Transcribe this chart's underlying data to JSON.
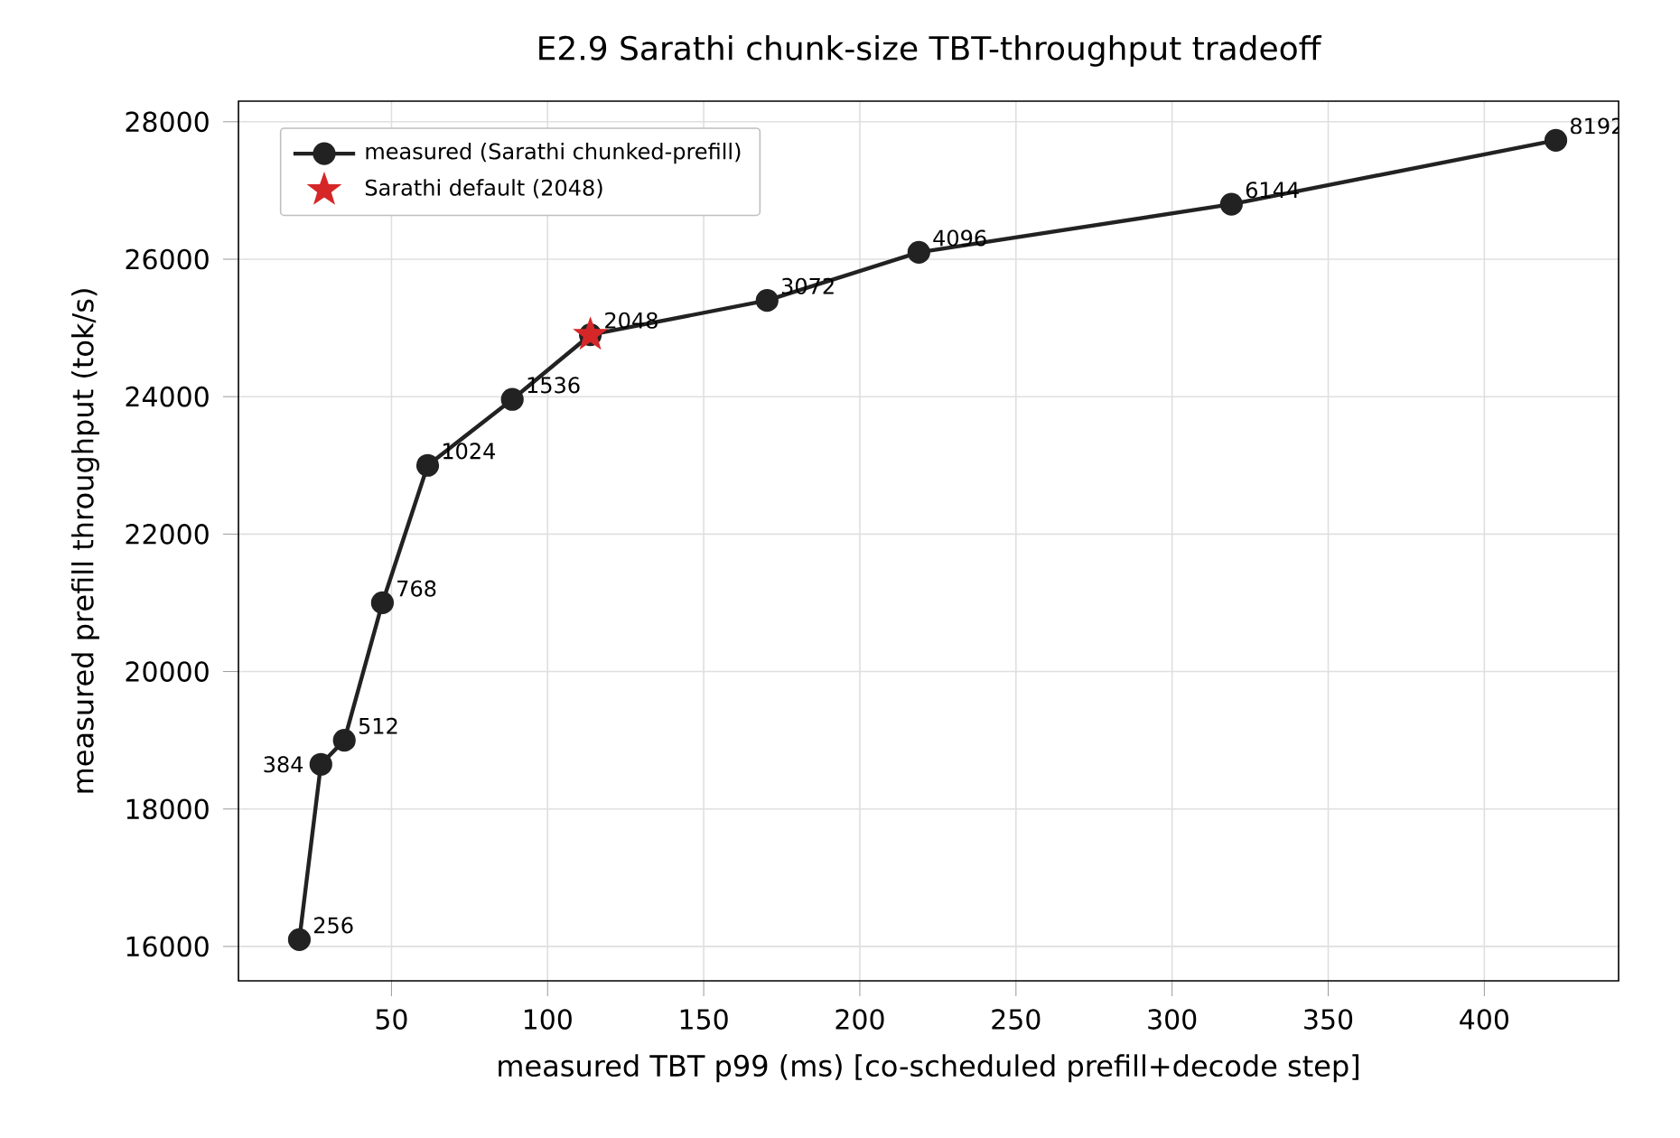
{
  "chart_data": {
    "type": "line",
    "title": "E2.9  Sarathi chunk-size TBT-throughput tradeoff",
    "xlabel": "measured TBT p99 (ms)  [co-scheduled prefill+decode step]",
    "ylabel": "measured prefill throughput (tok/s)",
    "series": [
      {
        "name": "measured (Sarathi chunked-prefill)",
        "color": "#222222",
        "marker": "circle",
        "line_style": "solid",
        "x": [
          20.5,
          27.4,
          34.9,
          47.1,
          61.6,
          88.7,
          113.7,
          170.3,
          218.9,
          319,
          422.9
        ],
        "values": [
          16100,
          18650,
          19000,
          21000,
          23000,
          23960,
          24900,
          25400,
          26100,
          26800,
          27730
        ]
      },
      {
        "name": "Sarathi default (2048)",
        "type": "scatter",
        "color": "#d62728",
        "marker": "star",
        "x": [
          113.7
        ],
        "values": [
          24900
        ]
      }
    ],
    "annotations": [
      {
        "text": "256",
        "x": 20.5,
        "y": 16100
      },
      {
        "text": "384",
        "x": 27.4,
        "y": 18650
      },
      {
        "text": "512",
        "x": 34.9,
        "y": 19000
      },
      {
        "text": "768",
        "x": 47.1,
        "y": 21000
      },
      {
        "text": "1024",
        "x": 61.6,
        "y": 23000
      },
      {
        "text": "1536",
        "x": 88.7,
        "y": 23960
      },
      {
        "text": "2048",
        "x": 113.7,
        "y": 24900
      },
      {
        "text": "3072",
        "x": 170.3,
        "y": 25400
      },
      {
        "text": "4096",
        "x": 218.9,
        "y": 26100
      },
      {
        "text": "6144",
        "x": 319,
        "y": 26800
      },
      {
        "text": "8192",
        "x": 422.9,
        "y": 27730
      }
    ],
    "xlim": [
      1,
      443
    ],
    "ylim": [
      15500,
      28300
    ],
    "xticks": [
      50,
      100,
      150,
      200,
      250,
      300,
      350,
      400
    ],
    "yticks": [
      16000,
      18000,
      20000,
      22000,
      24000,
      26000,
      28000
    ],
    "grid": true,
    "legend": "top left"
  }
}
